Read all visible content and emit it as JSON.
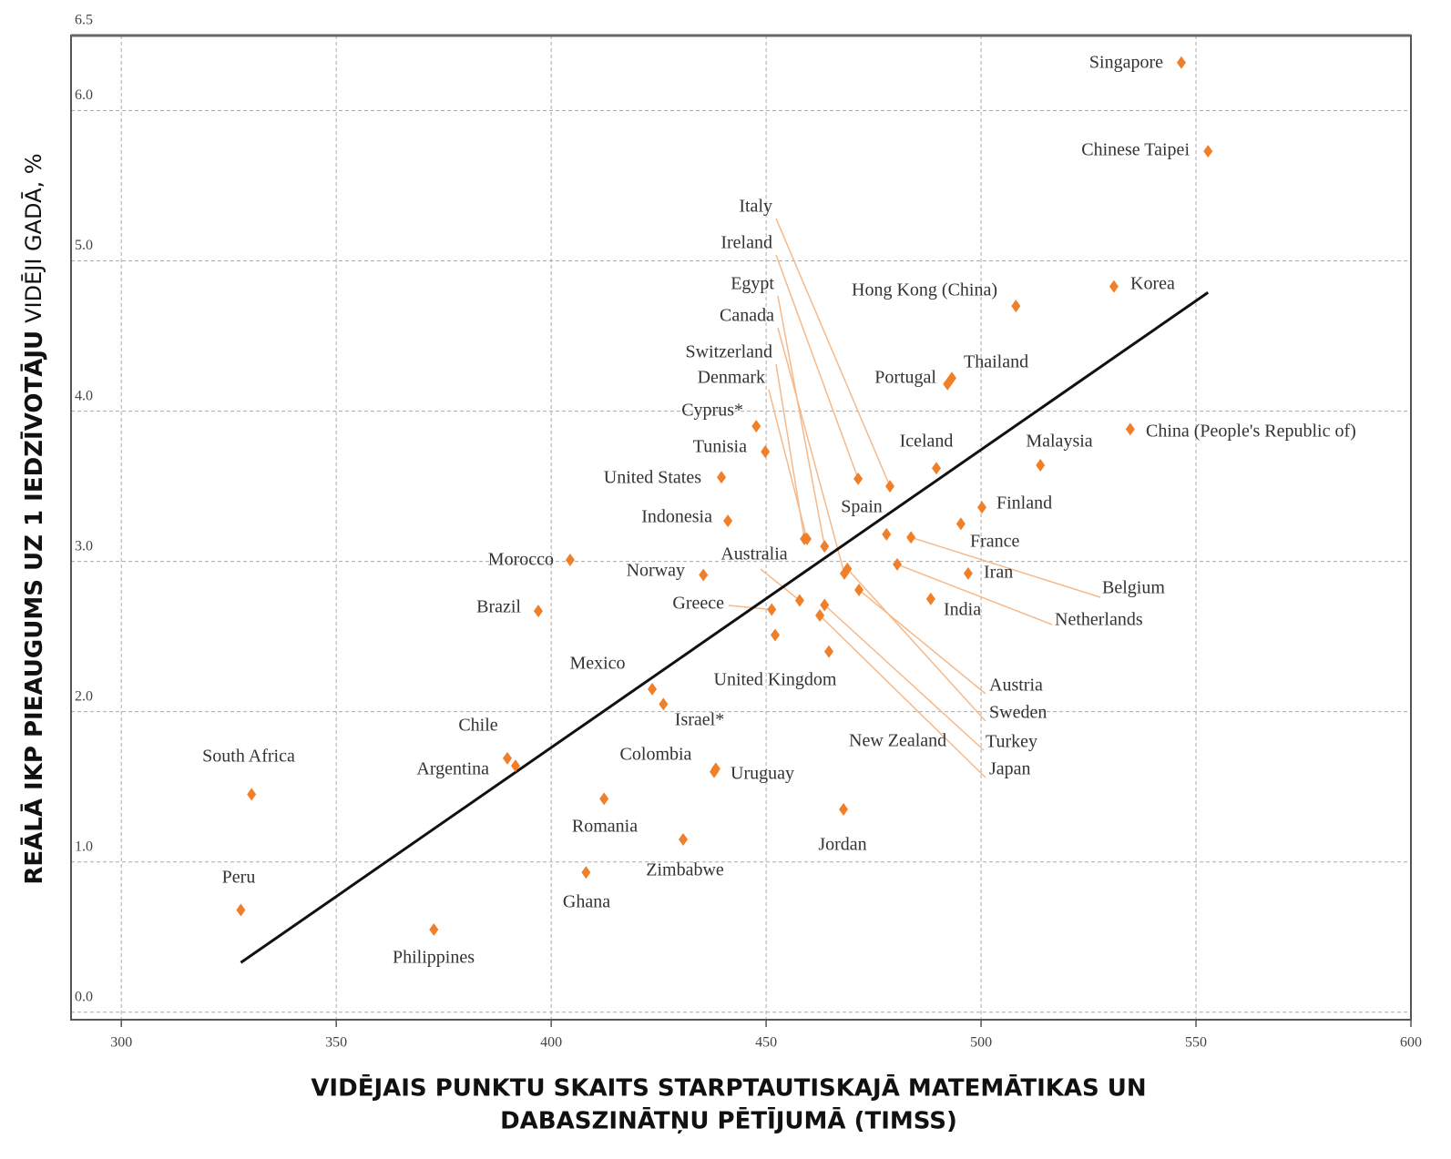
{
  "chart_data": {
    "type": "scatter",
    "xlabel": [
      "VIDĒJAIS PUNKTU SKAITS STARPTAUTISKAJĀ MATEMĀTIKAS UN",
      "DABASZINĀTŅU PĒTĪJUMĀ (TIMSS)"
    ],
    "ylabel": "REĀLĀ IKP PIEAUGUMS UZ 1 IEDZĪVOTĀJU",
    "ylabel_note": "VIDĒJI GADĀ, %",
    "xlim": [
      288.3,
      600
    ],
    "ylim": [
      -0.05,
      6.5
    ],
    "xticks": [
      300,
      350,
      400,
      450,
      500,
      550,
      600
    ],
    "yticks": [
      {
        "value": 0,
        "label": "0.0"
      },
      {
        "value": 1,
        "label": "1.0"
      },
      {
        "value": 2,
        "label": "2.0"
      },
      {
        "value": 3,
        "label": "3.0"
      },
      {
        "value": 4,
        "label": "4.0"
      },
      {
        "value": 5,
        "label": "5.0"
      },
      {
        "value": 6,
        "label": "6.0"
      },
      6.5
    ],
    "grid": true,
    "color": "#f07f2a",
    "labels": [
      "Singapore",
      "Chinese Taipei",
      "Korea",
      "Hong Kong (China)",
      "Thailand",
      "Portugal",
      "China (People's Republic of)",
      "Malaysia",
      "Iceland",
      "Finland",
      "France",
      "Iran",
      "India",
      "Belgium",
      "Netherlands",
      "Spain",
      "Italy",
      "Ireland",
      "Egypt",
      "Canada",
      "Switzerland",
      "Denmark",
      "Cyprus*",
      "Tunisia",
      "United States",
      "Indonesia",
      "Morocco",
      "Norway",
      "Brazil",
      "Australia",
      "Greece",
      "United Kingdom",
      "Austria",
      "Sweden",
      "Turkey",
      "Japan",
      "New Zealand",
      "Mexico",
      "Israel*",
      "Chile",
      "Argentina",
      "Colombia",
      "Uruguay",
      "South Africa",
      "Romania",
      "Jordan",
      "Zimbabwe",
      "Ghana",
      "Peru",
      "Philippines"
    ],
    "x": [
      546.6,
      552.8,
      530.9,
      508.1,
      493.2,
      492.2,
      534.7,
      513.8,
      489.6,
      500.2,
      495.3,
      497.0,
      488.3,
      483.7,
      480.5,
      478.0,
      478.8,
      471.4,
      463.6,
      468.2,
      458.9,
      459.5,
      447.7,
      449.8,
      439.6,
      441.1,
      404.4,
      435.4,
      397.0,
      457.8,
      451.3,
      452.1,
      471.6,
      468.9,
      463.6,
      462.5,
      464.6,
      423.5,
      426.1,
      389.8,
      391.7,
      437.9,
      438.3,
      330.3,
      412.3,
      468.0,
      430.7,
      408.1,
      327.8,
      372.7
    ],
    "values": [
      6.32,
      5.73,
      4.83,
      4.7,
      4.22,
      4.18,
      3.88,
      3.64,
      3.62,
      3.36,
      3.25,
      2.92,
      2.75,
      3.16,
      2.98,
      3.18,
      3.5,
      3.55,
      3.1,
      2.92,
      3.15,
      3.15,
      3.9,
      3.73,
      3.56,
      3.27,
      3.01,
      2.91,
      2.67,
      2.74,
      2.68,
      2.51,
      2.81,
      2.95,
      2.71,
      2.64,
      2.4,
      2.15,
      2.05,
      1.69,
      1.64,
      1.6,
      1.62,
      1.45,
      1.42,
      1.35,
      1.15,
      0.93,
      0.68,
      0.55
    ],
    "trend_line": {
      "x": [
        327.8,
        552.8
      ],
      "values": [
        0.33,
        4.79
      ]
    }
  }
}
